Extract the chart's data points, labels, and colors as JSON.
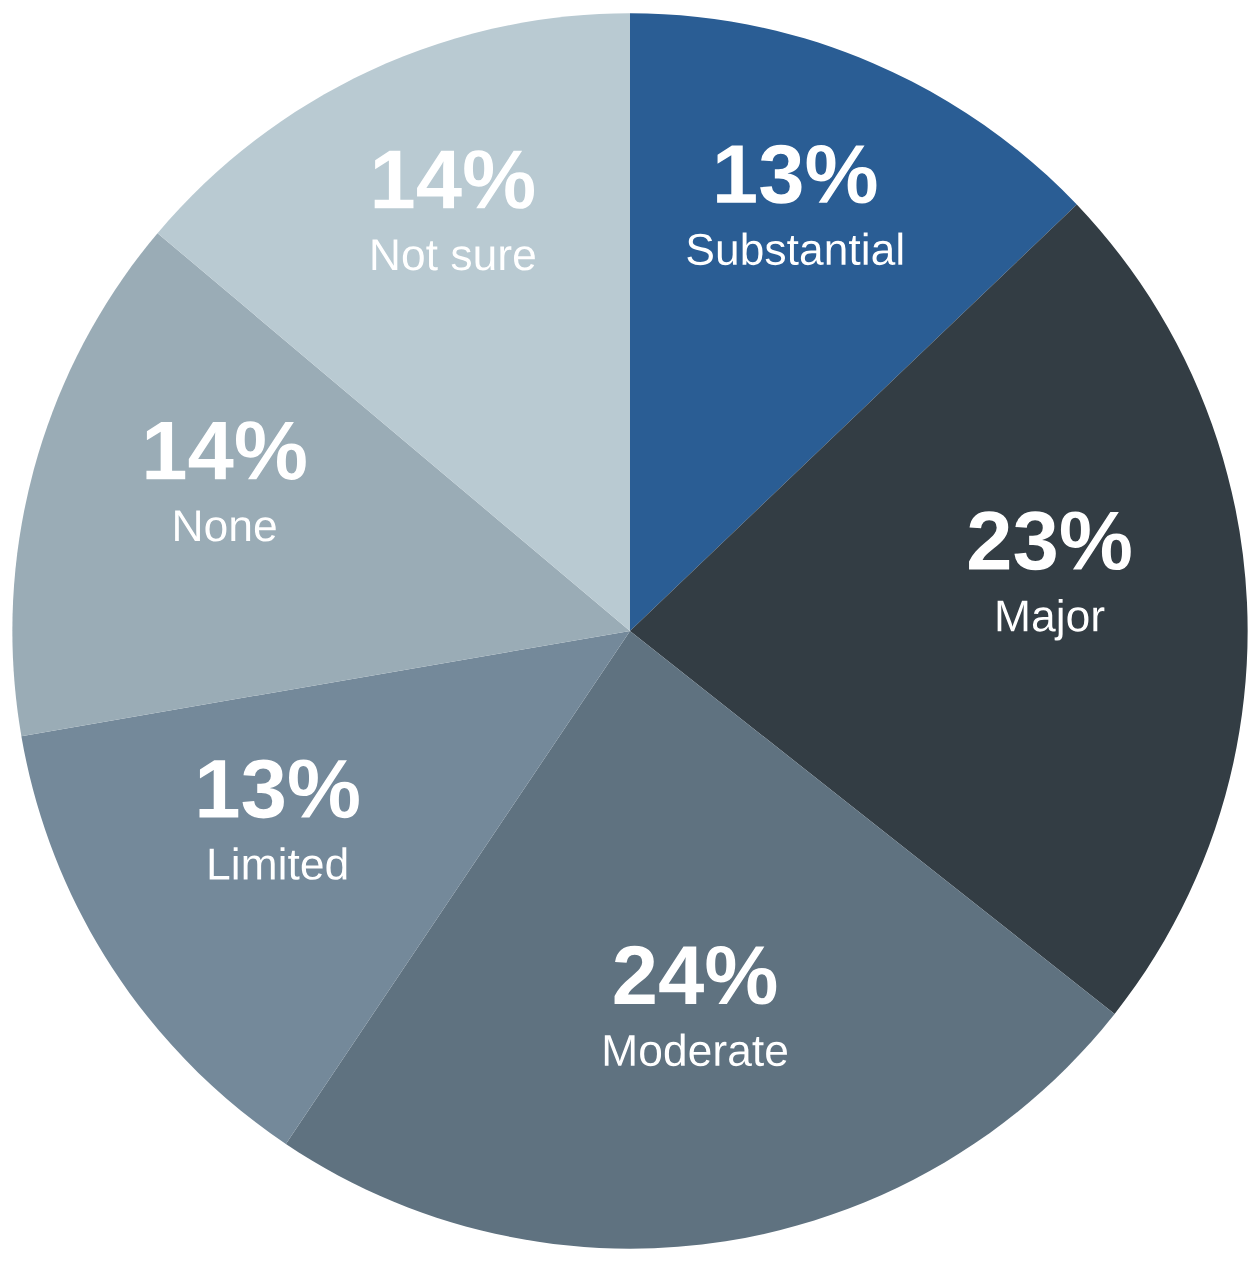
{
  "chart_data": {
    "type": "pie",
    "categories": [
      "Substantial",
      "Major",
      "Moderate",
      "Limited",
      "None",
      "Not sure"
    ],
    "values": [
      13,
      23,
      24,
      13,
      14,
      14
    ],
    "value_labels": [
      "13%",
      "23%",
      "24%",
      "13%",
      "14%",
      "14%"
    ],
    "colors": [
      "#2a5d94",
      "#333d44",
      "#5f7280",
      "#74899a",
      "#9aacb6",
      "#b9cad2"
    ],
    "legend": false
  }
}
